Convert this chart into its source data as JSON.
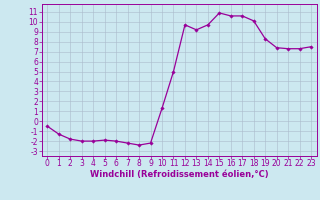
{
  "x": [
    0,
    1,
    2,
    3,
    4,
    5,
    6,
    7,
    8,
    9,
    10,
    11,
    12,
    13,
    14,
    15,
    16,
    17,
    18,
    19,
    20,
    21,
    22,
    23
  ],
  "y": [
    -0.5,
    -1.3,
    -1.8,
    -2.0,
    -2.0,
    -1.9,
    -2.0,
    -2.2,
    -2.4,
    -2.2,
    1.3,
    5.0,
    9.7,
    9.2,
    9.7,
    10.9,
    10.6,
    10.6,
    10.1,
    8.3,
    7.4,
    7.3,
    7.3,
    7.5
  ],
  "line_color": "#990099",
  "marker": "D",
  "marker_size": 1.8,
  "bg_color": "#cce8f0",
  "grid_color": "#aabbcc",
  "xlabel": "Windchill (Refroidissement éolien,°C)",
  "xlabel_fontsize": 6,
  "ylabel_ticks": [
    -3,
    -2,
    -1,
    0,
    1,
    2,
    3,
    4,
    5,
    6,
    7,
    8,
    9,
    10,
    11
  ],
  "xlim": [
    -0.5,
    23.5
  ],
  "ylim": [
    -3.5,
    11.8
  ],
  "tick_fontsize": 5.5,
  "line_width": 0.9
}
